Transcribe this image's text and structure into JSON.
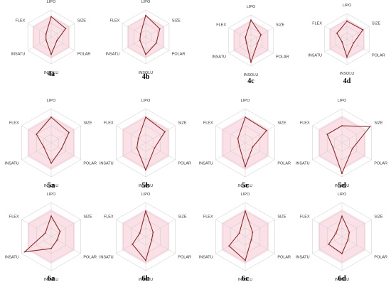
{
  "figure": {
    "colors": {
      "band": "#f7c9d3",
      "band_inner": "#fbe3e8",
      "grid": "#c9c9c9",
      "spoke": "#cfcfcf",
      "series": "#8b2c2c"
    }
  },
  "chart_data": [
    {
      "type": "radar",
      "panel_label": "4a",
      "axes": [
        "LIPO",
        "SIZE",
        "POLAR",
        "INSOLU",
        "INSATU",
        "FLEX"
      ],
      "values": [
        0.75,
        0.62,
        0.25,
        0.65,
        0.22,
        0.22
      ]
    },
    {
      "type": "radar",
      "panel_label": "4b",
      "axes": [
        "LIPO",
        "SIZE",
        "POLAR",
        "INSOLU",
        "INSATU",
        "FLEX"
      ],
      "values": [
        0.8,
        0.6,
        0.45,
        0.65,
        0.25,
        0.22
      ]
    },
    {
      "type": "radar",
      "panel_label": "4c",
      "axes": [
        "LIPO",
        "SIZE",
        "POLAR",
        "INSOLU",
        "INSATU",
        "FLEX"
      ],
      "values": [
        0.8,
        0.45,
        0.28,
        0.85,
        0.2,
        0.25
      ]
    },
    {
      "type": "radar",
      "panel_label": "4d",
      "axes": [
        "LIPO",
        "SIZE",
        "POLAR",
        "INSOLU",
        "INSATU",
        "FLEX"
      ],
      "values": [
        0.7,
        0.72,
        0.3,
        0.7,
        0.22,
        0.45
      ]
    },
    {
      "type": "radar",
      "panel_label": "5a",
      "axes": [
        "LIPO",
        "SIZE",
        "POLAR",
        "INSOLU",
        "INSATU",
        "FLEX"
      ],
      "values": [
        0.75,
        0.6,
        0.35,
        0.6,
        0.25,
        0.5
      ]
    },
    {
      "type": "radar",
      "panel_label": "5b",
      "axes": [
        "LIPO",
        "SIZE",
        "POLAR",
        "INSOLU",
        "INSATU",
        "FLEX"
      ],
      "values": [
        0.75,
        0.65,
        0.3,
        0.8,
        0.3,
        0.25
      ]
    },
    {
      "type": "radar",
      "panel_label": "5c",
      "axes": [
        "LIPO",
        "SIZE",
        "POLAR",
        "INSOLU",
        "INSATU",
        "FLEX"
      ],
      "values": [
        0.75,
        0.72,
        0.25,
        0.7,
        0.2,
        0.25
      ]
    },
    {
      "type": "radar",
      "panel_label": "5d",
      "axes": [
        "LIPO",
        "SIZE",
        "POLAR",
        "INSOLU",
        "INSATU",
        "FLEX"
      ],
      "values": [
        0.5,
        0.95,
        0.35,
        0.9,
        0.3,
        0.5
      ]
    },
    {
      "type": "radar",
      "panel_label": "6a",
      "axes": [
        "LIPO",
        "SIZE",
        "POLAR",
        "INSOLU",
        "INSATU",
        "FLEX"
      ],
      "values": [
        0.6,
        0.3,
        0.2,
        0.35,
        0.9,
        0.2
      ]
    },
    {
      "type": "radar",
      "panel_label": "6b",
      "axes": [
        "LIPO",
        "SIZE",
        "POLAR",
        "INSOLU",
        "INSATU",
        "FLEX"
      ],
      "values": [
        0.75,
        0.25,
        0.2,
        0.7,
        0.45,
        0.2
      ]
    },
    {
      "type": "radar",
      "panel_label": "6c",
      "axes": [
        "LIPO",
        "SIZE",
        "POLAR",
        "INSOLU",
        "INSATU",
        "FLEX"
      ],
      "values": [
        0.75,
        0.25,
        0.2,
        0.7,
        0.55,
        0.2
      ]
    },
    {
      "type": "radar",
      "panel_label": "6d",
      "axes": [
        "LIPO",
        "SIZE",
        "POLAR",
        "INSOLU",
        "INSATU",
        "FLEX"
      ],
      "values": [
        0.6,
        0.25,
        0.2,
        0.5,
        0.45,
        0.2
      ]
    }
  ]
}
